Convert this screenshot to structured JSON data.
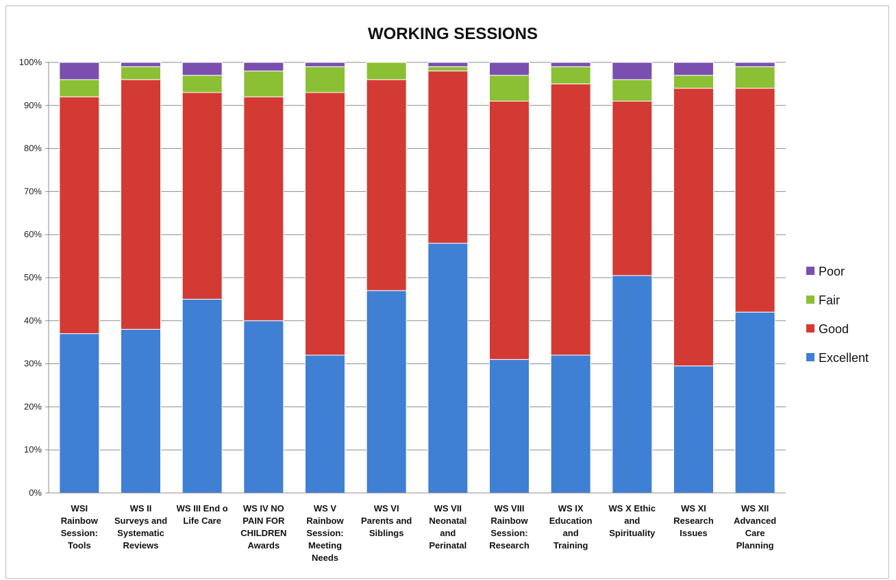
{
  "chart_data": {
    "type": "bar",
    "stacked": true,
    "percent": true,
    "title": "WORKING SESSIONS",
    "xlabel": "",
    "ylabel": "",
    "ylim": [
      0,
      100
    ],
    "yticks": [
      "0%",
      "10%",
      "20%",
      "30%",
      "40%",
      "50%",
      "60%",
      "70%",
      "80%",
      "90%",
      "100%"
    ],
    "grid": true,
    "legend_position": "right",
    "categories": [
      [
        "WSI",
        "Rainbow",
        "Session:",
        "Tools"
      ],
      [
        "WS II",
        "Surveys and",
        "Systematic",
        "Reviews"
      ],
      [
        "WS III End o",
        "Life Care"
      ],
      [
        "WS IV NO",
        "PAIN FOR",
        "CHILDREN",
        "Awards"
      ],
      [
        "WS V",
        "Rainbow",
        "Session:",
        "Meeting",
        "Needs"
      ],
      [
        "WS VI",
        "Parents and",
        "Siblings"
      ],
      [
        "WS VII",
        "Neonatal",
        "and",
        "Perinatal"
      ],
      [
        "WS VIII",
        "Rainbow",
        "Session:",
        "Research"
      ],
      [
        "WS IX",
        "Education",
        "and",
        "Training"
      ],
      [
        "WS X Ethic",
        "and",
        "Spirituality"
      ],
      [
        "WS XI",
        "Research",
        "Issues"
      ],
      [
        "WS XII",
        "Advanced",
        "Care",
        "Planning"
      ]
    ],
    "series": [
      {
        "name": "Excellent",
        "color": "#3f7fd4",
        "values": [
          37,
          38,
          45,
          40,
          32,
          47,
          58,
          31,
          32,
          50.5,
          29.5,
          42
        ]
      },
      {
        "name": "Good",
        "color": "#d43a34",
        "values": [
          55,
          58,
          48,
          52,
          61,
          49,
          40,
          60,
          63,
          40.5,
          64.5,
          52
        ]
      },
      {
        "name": "Fair",
        "color": "#8bbf34",
        "values": [
          4,
          3,
          4,
          6,
          6,
          4,
          1,
          6,
          4,
          5,
          3,
          5
        ]
      },
      {
        "name": "Poor",
        "color": "#7a4fb0",
        "values": [
          4,
          1,
          3,
          2,
          1,
          0,
          1,
          3,
          1,
          4,
          3,
          1
        ]
      }
    ],
    "legend_order": [
      "Poor",
      "Fair",
      "Good",
      "Excellent"
    ]
  }
}
